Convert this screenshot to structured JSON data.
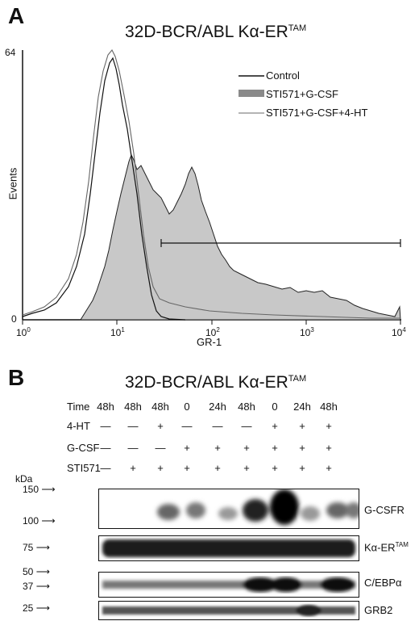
{
  "panel_a": {
    "letter": "A",
    "title": "32D-BCR/ABL Kα-ER",
    "title_sup": "TAM",
    "y_axis_label": "Events",
    "x_axis_label": "GR-1",
    "y_max_label": "64",
    "y_min_label": "0",
    "x_ticks": [
      {
        "base": "10",
        "exp": "0"
      },
      {
        "base": "10",
        "exp": "1"
      },
      {
        "base": "10",
        "exp": "2"
      },
      {
        "base": "10",
        "exp": "3"
      },
      {
        "base": "10",
        "exp": "4"
      }
    ],
    "legend": [
      {
        "label": "Control"
      },
      {
        "label": "STI571+G-CSF"
      },
      {
        "label": "STI571+G-CSF+4-HT"
      }
    ]
  },
  "panel_b": {
    "letter": "B",
    "title": "32D-BCR/ABL Kα-ER",
    "title_sup": "TAM",
    "kda_label": "kDa",
    "rows": [
      {
        "label": "Time",
        "values": [
          "48h",
          "48h",
          "48h",
          "0",
          "24h",
          "48h",
          "0",
          "24h",
          "48h"
        ]
      },
      {
        "label": "4-HT",
        "values": [
          "—",
          "—",
          "+",
          "—",
          "—",
          "—",
          "+",
          "+",
          "+"
        ]
      },
      {
        "label": "G-CSF",
        "values": [
          "—",
          "—",
          "—",
          "+",
          "+",
          "+",
          "+",
          "+",
          "+"
        ]
      },
      {
        "label": "STI571",
        "values": [
          "—",
          "+",
          "+",
          "+",
          "+",
          "+",
          "+",
          "+",
          "+"
        ]
      }
    ],
    "markers": [
      "150",
      "100",
      "75",
      "50",
      "37",
      "25"
    ],
    "blots": [
      {
        "label": "G-CSFR",
        "sup": ""
      },
      {
        "label": "Kα-ER",
        "sup": "TAM"
      },
      {
        "label": "C/EBPα",
        "sup": ""
      },
      {
        "label": "GRB2",
        "sup": ""
      }
    ]
  },
  "colors": {
    "fill": "#c8c8c8",
    "ink": "#111111"
  }
}
